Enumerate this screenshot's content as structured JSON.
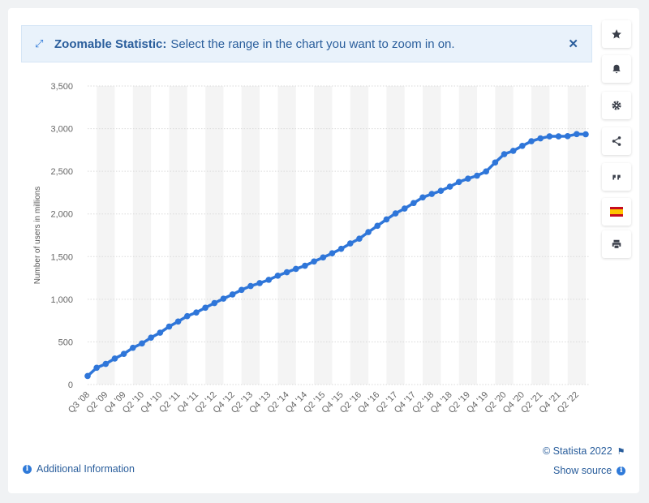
{
  "banner": {
    "title": "Zoomable Statistic:",
    "message": "Select the range in the chart you want to zoom in on.",
    "zoom_icon": "expand-arrows-icon",
    "close_icon": "close-icon"
  },
  "toolbar": {
    "icons": [
      "star-icon",
      "bell-icon",
      "gear-icon",
      "share-icon",
      "quote-icon",
      "spain-flag-icon",
      "print-icon"
    ]
  },
  "footer": {
    "additional_info": "Additional Information",
    "copyright": "© Statista 2022",
    "show_source": "Show source"
  },
  "colors": {
    "line": "#2f76d9",
    "accent": "#2a5e9c",
    "grid": "#d9d9d9",
    "band": "#f4f4f4"
  },
  "chart_data": {
    "type": "line",
    "ylabel": "Number of users in millions",
    "ylim": [
      0,
      3500
    ],
    "yticks": [
      0,
      500,
      1000,
      1500,
      2000,
      2500,
      3000,
      3500
    ],
    "ytick_labels": [
      "0",
      "500",
      "1,000",
      "1,500",
      "2,000",
      "2,500",
      "3,000",
      "3,500"
    ],
    "grid": true,
    "legend": "none",
    "xtick_labels": [
      "Q3 '08",
      "Q2 '09",
      "Q4 '09",
      "Q2 '10",
      "Q4 '10",
      "Q2 '11",
      "Q4 '11",
      "Q2 '12",
      "Q4 '12",
      "Q2 '13",
      "Q4 '13",
      "Q2 '14",
      "Q4 '14",
      "Q2 '15",
      "Q4 '15",
      "Q2 '16",
      "Q4 '16",
      "Q2 '17",
      "Q4 '17",
      "Q2 '18",
      "Q4 '18",
      "Q2 '19",
      "Q4 '19",
      "Q2 '20",
      "Q4 '20",
      "Q2 '21",
      "Q4 '21",
      "Q2 '22"
    ],
    "x": [
      "Q3 '08",
      "Q4 '08",
      "Q1 '09",
      "Q2 '09",
      "Q3 '09",
      "Q4 '09",
      "Q1 '10",
      "Q2 '10",
      "Q3 '10",
      "Q4 '10",
      "Q1 '11",
      "Q2 '11",
      "Q3 '11",
      "Q4 '11",
      "Q1 '12",
      "Q2 '12",
      "Q3 '12",
      "Q4 '12",
      "Q1 '13",
      "Q2 '13",
      "Q3 '13",
      "Q4 '13",
      "Q1 '14",
      "Q2 '14",
      "Q3 '14",
      "Q4 '14",
      "Q1 '15",
      "Q2 '15",
      "Q3 '15",
      "Q4 '15",
      "Q1 '16",
      "Q2 '16",
      "Q3 '16",
      "Q4 '16",
      "Q1 '17",
      "Q2 '17",
      "Q3 '17",
      "Q4 '17",
      "Q1 '18",
      "Q2 '18",
      "Q3 '18",
      "Q4 '18",
      "Q1 '19",
      "Q2 '19",
      "Q3 '19",
      "Q4 '19",
      "Q1 '20",
      "Q2 '20",
      "Q3 '20",
      "Q4 '20",
      "Q1 '21",
      "Q2 '21",
      "Q3 '21",
      "Q4 '21",
      "Q1 '22",
      "Q2 '22"
    ],
    "series": [
      {
        "values": [
          100,
          197,
          242,
          305,
          360,
          431,
          482,
          550,
          608,
          680,
          739,
          802,
          845,
          901,
          955,
          1007,
          1056,
          1110,
          1155,
          1189,
          1228,
          1276,
          1317,
          1356,
          1393,
          1443,
          1490,
          1539,
          1591,
          1654,
          1710,
          1787,
          1861,
          1936,
          2006,
          2063,
          2128,
          2194,
          2234,
          2271,
          2320,
          2375,
          2414,
          2449,
          2498,
          2603,
          2701,
          2740,
          2798,
          2853,
          2886,
          2910,
          2910,
          2912,
          2936,
          2934
        ]
      }
    ]
  }
}
